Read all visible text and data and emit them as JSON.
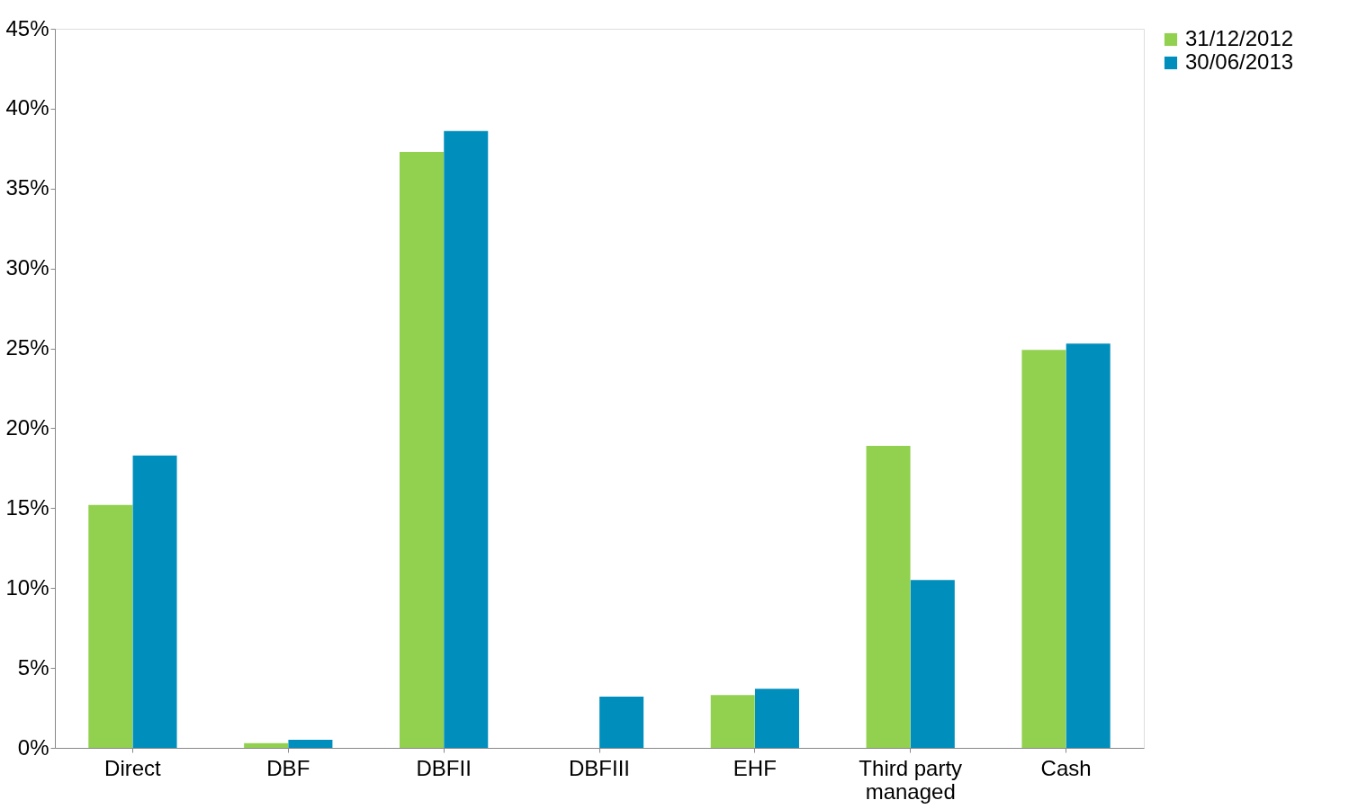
{
  "chart_data": {
    "type": "bar",
    "categories": [
      "Direct",
      "DBF",
      "DBFII",
      "DBFIII",
      "EHF",
      "Third party managed",
      "Cash"
    ],
    "series": [
      {
        "name": "31/12/2012",
        "color": "#92d050",
        "values": [
          15.2,
          0.3,
          37.3,
          0,
          3.3,
          18.9,
          24.9
        ]
      },
      {
        "name": "30/06/2013",
        "color": "#008fbc",
        "values": [
          18.3,
          0.5,
          38.6,
          3.2,
          3.7,
          10.5,
          25.3
        ]
      }
    ],
    "ylim": [
      0,
      45
    ],
    "yticks": [
      {
        "value": 0,
        "label": "0%"
      },
      {
        "value": 5,
        "label": "5%"
      },
      {
        "value": 10,
        "label": "10%"
      },
      {
        "value": 15,
        "label": "15%"
      },
      {
        "value": 20,
        "label": "20%"
      },
      {
        "value": 25,
        "label": "25%"
      },
      {
        "value": 30,
        "label": "30%"
      },
      {
        "value": 35,
        "label": "35%"
      },
      {
        "value": 40,
        "label": "40%"
      },
      {
        "value": 45,
        "label": "45%"
      }
    ],
    "grid": false,
    "legend": "right"
  }
}
